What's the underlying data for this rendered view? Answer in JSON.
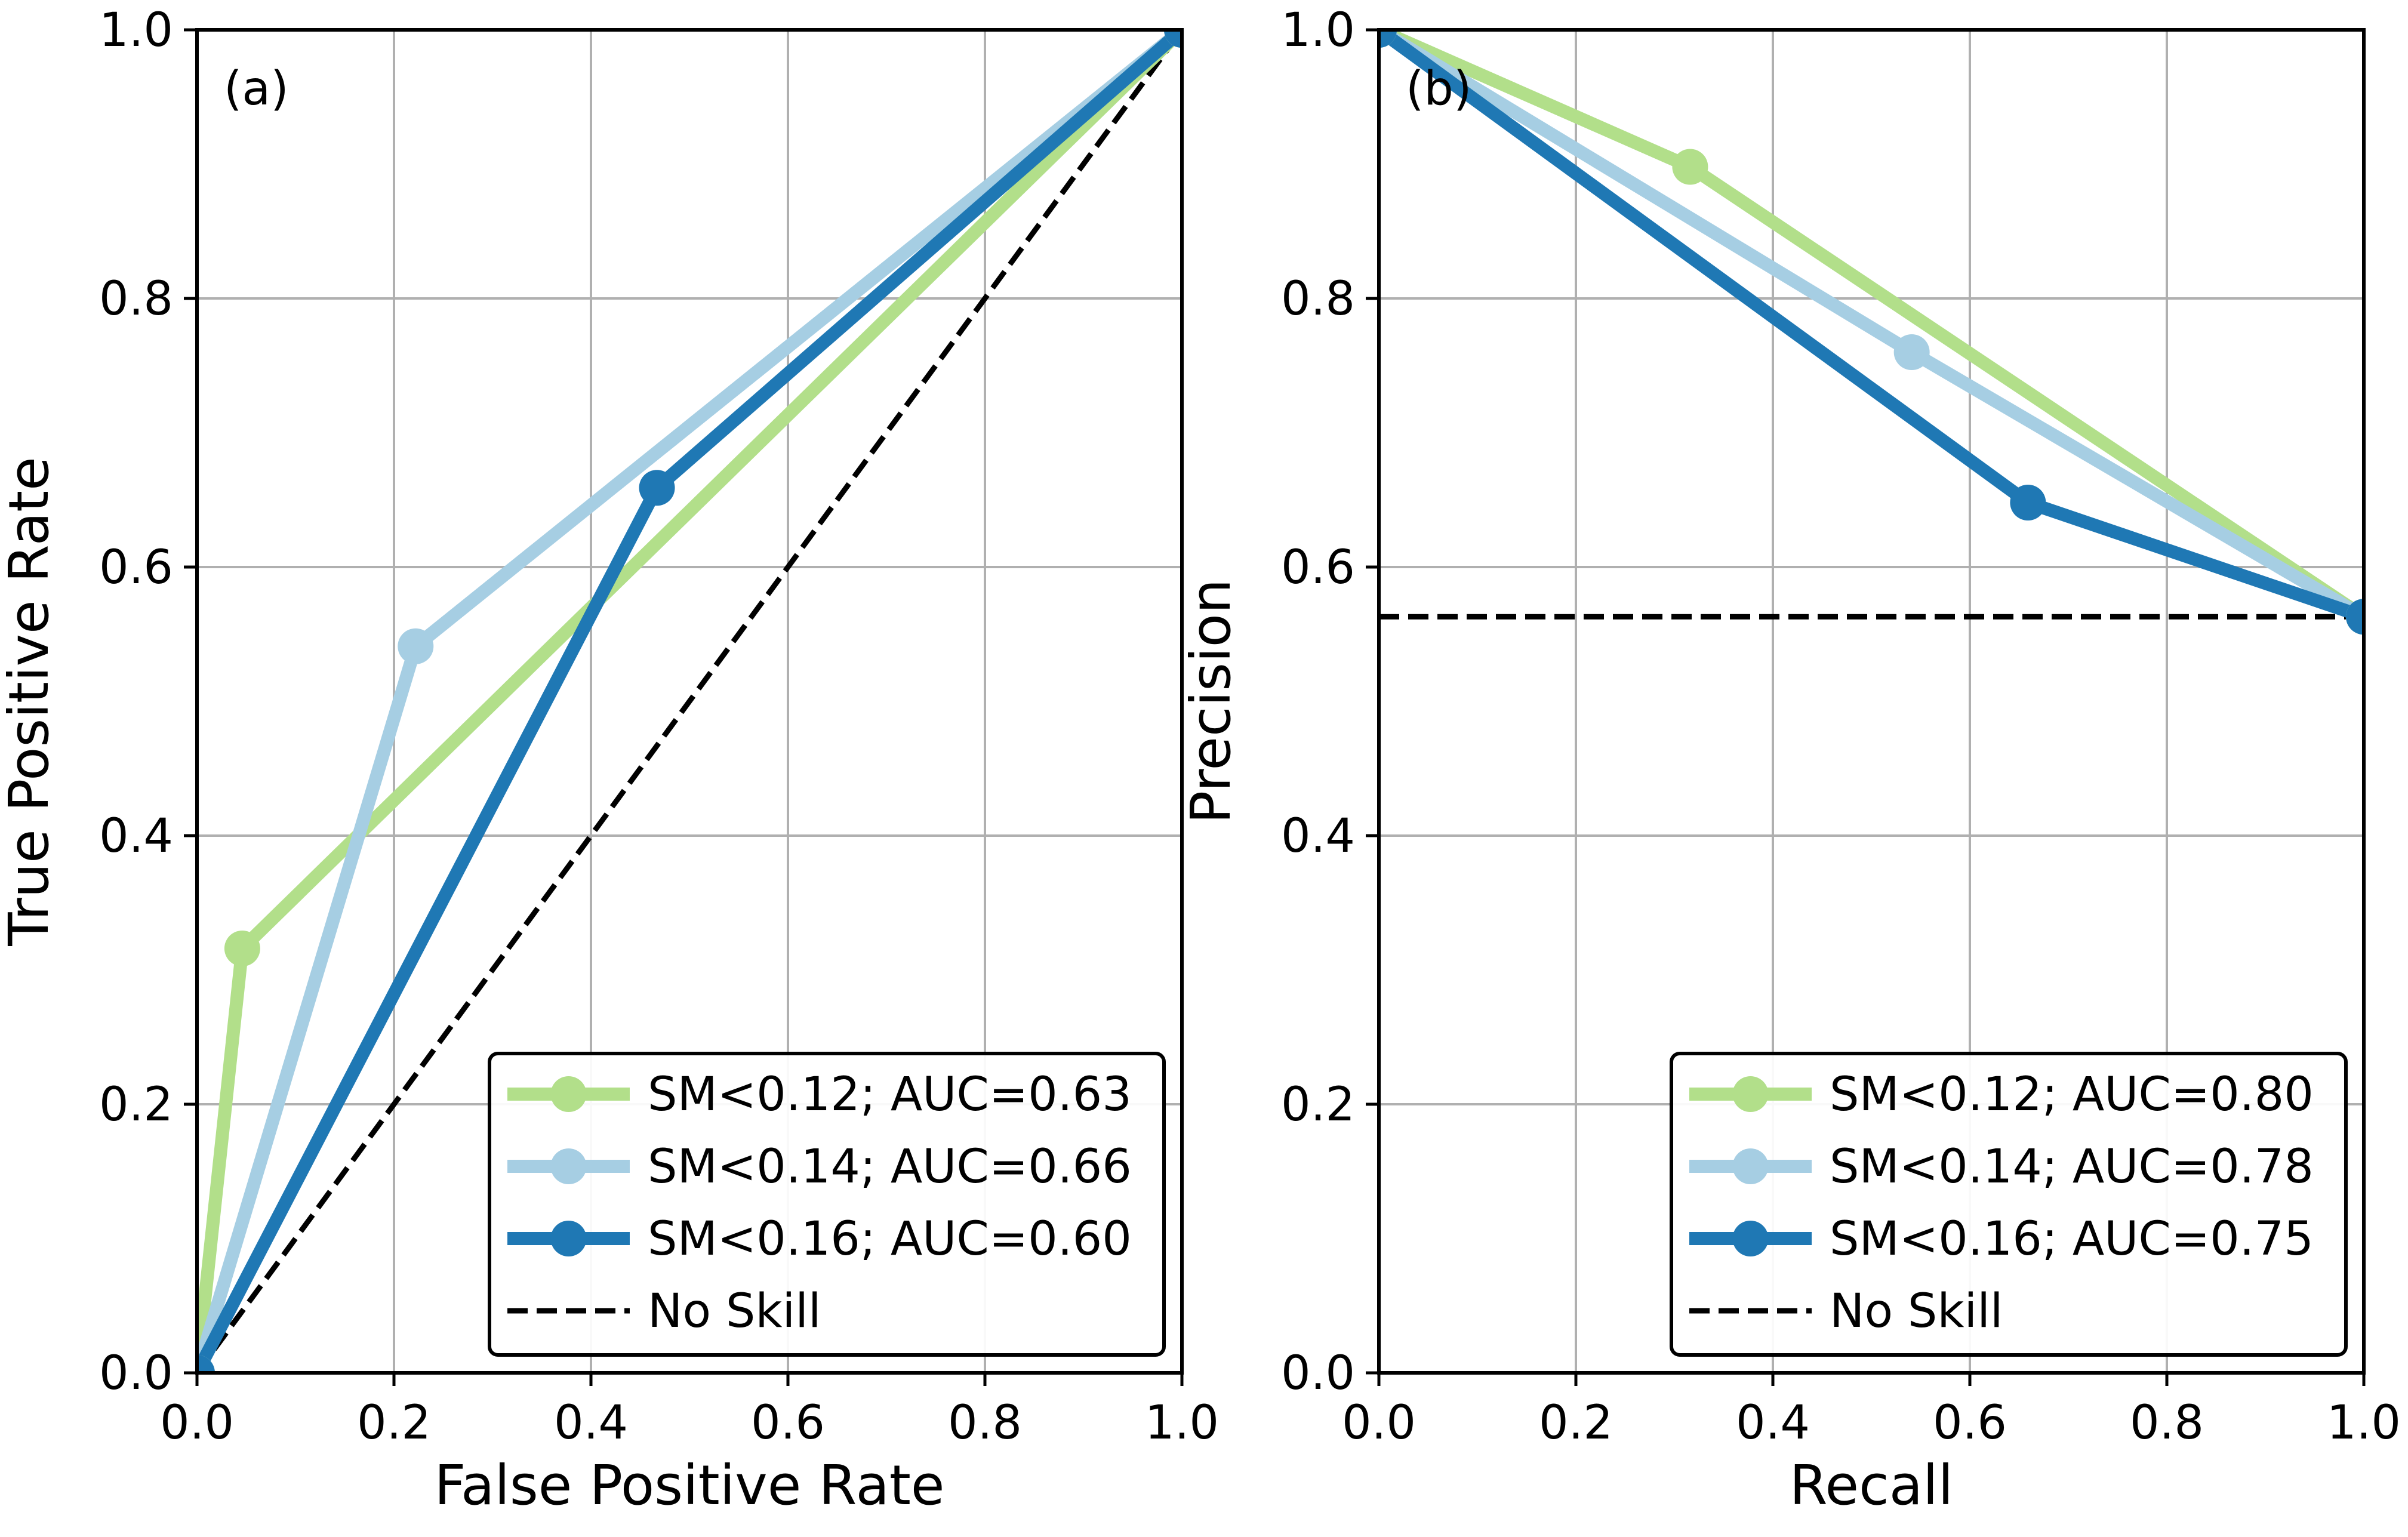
{
  "chart_data": [
    {
      "type": "line",
      "panel_label": "(a)",
      "xlabel": "False Positive Rate",
      "ylabel": "True Positive Rate",
      "xlim": [
        0,
        1
      ],
      "ylim": [
        0,
        1
      ],
      "xticks": [
        "0.0",
        "0.2",
        "0.4",
        "0.6",
        "0.8",
        "1.0"
      ],
      "yticks": [
        "0.0",
        "0.2",
        "0.4",
        "0.6",
        "0.8",
        "1.0"
      ],
      "grid": true,
      "legend_position": "lower-right",
      "series": [
        {
          "name": "SM<0.12; AUC=0.63",
          "color": "#b2df8a",
          "marker": true,
          "x": [
            0.0,
            0.046,
            1.0
          ],
          "y": [
            0.0,
            0.316,
            1.0
          ]
        },
        {
          "name": "SM<0.14; AUC=0.66",
          "color": "#a6cee3",
          "marker": true,
          "x": [
            0.0,
            0.222,
            1.0
          ],
          "y": [
            0.0,
            0.541,
            1.0
          ]
        },
        {
          "name": "SM<0.16; AUC=0.60",
          "color": "#1f78b4",
          "marker": true,
          "x": [
            0.0,
            0.467,
            1.0
          ],
          "y": [
            0.0,
            0.659,
            1.0
          ]
        },
        {
          "name": "No Skill",
          "color": "#000000",
          "dashed": true,
          "marker": false,
          "x": [
            0.0,
            1.0
          ],
          "y": [
            0.0,
            1.0
          ]
        }
      ]
    },
    {
      "type": "line",
      "panel_label": "(b)",
      "xlabel": "Recall",
      "ylabel": "Precision",
      "xlim": [
        0,
        1
      ],
      "ylim": [
        0,
        1
      ],
      "xticks": [
        "0.0",
        "0.2",
        "0.4",
        "0.6",
        "0.8",
        "1.0"
      ],
      "yticks": [
        "0.0",
        "0.2",
        "0.4",
        "0.6",
        "0.8",
        "1.0"
      ],
      "grid": true,
      "legend_position": "lower-right",
      "series": [
        {
          "name": "SM<0.12; AUC=0.80",
          "color": "#b2df8a",
          "marker": true,
          "x": [
            0.0,
            0.316,
            1.0
          ],
          "y": [
            1.0,
            0.898,
            0.563
          ]
        },
        {
          "name": "SM<0.14; AUC=0.78",
          "color": "#a6cee3",
          "marker": true,
          "x": [
            0.0,
            0.541,
            1.0
          ],
          "y": [
            1.0,
            0.76,
            0.563
          ]
        },
        {
          "name": "SM<0.16; AUC=0.75",
          "color": "#1f78b4",
          "marker": true,
          "x": [
            0.0,
            0.659,
            1.0
          ],
          "y": [
            1.0,
            0.648,
            0.563
          ]
        },
        {
          "name": "No Skill",
          "color": "#000000",
          "dashed": true,
          "marker": false,
          "x": [
            0.0,
            1.0
          ],
          "y": [
            0.563,
            0.563
          ]
        }
      ]
    }
  ]
}
